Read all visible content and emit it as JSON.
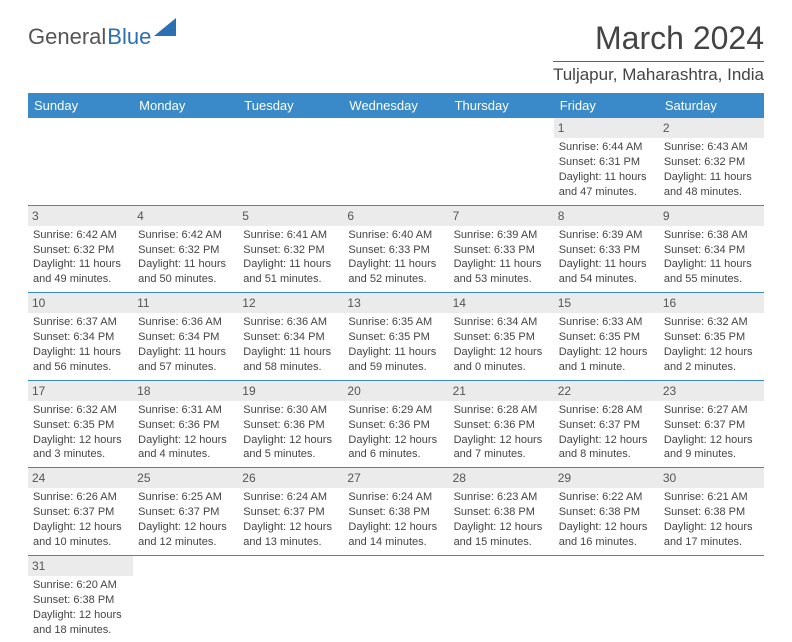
{
  "logo": {
    "part1": "General",
    "part2": "Blue"
  },
  "title": "March 2024",
  "location": "Tuljapur, Maharashtra, India",
  "weekdays": [
    "Sunday",
    "Monday",
    "Tuesday",
    "Wednesday",
    "Thursday",
    "Friday",
    "Saturday"
  ],
  "colors": {
    "headerBg": "#3a8ac9",
    "accent": "#2d6fb3",
    "dayBg": "#ebebeb"
  },
  "days": [
    {
      "n": "1",
      "sr": "Sunrise: 6:44 AM",
      "ss": "Sunset: 6:31 PM",
      "d1": "Daylight: 11 hours",
      "d2": "and 47 minutes."
    },
    {
      "n": "2",
      "sr": "Sunrise: 6:43 AM",
      "ss": "Sunset: 6:32 PM",
      "d1": "Daylight: 11 hours",
      "d2": "and 48 minutes."
    },
    {
      "n": "3",
      "sr": "Sunrise: 6:42 AM",
      "ss": "Sunset: 6:32 PM",
      "d1": "Daylight: 11 hours",
      "d2": "and 49 minutes."
    },
    {
      "n": "4",
      "sr": "Sunrise: 6:42 AM",
      "ss": "Sunset: 6:32 PM",
      "d1": "Daylight: 11 hours",
      "d2": "and 50 minutes."
    },
    {
      "n": "5",
      "sr": "Sunrise: 6:41 AM",
      "ss": "Sunset: 6:32 PM",
      "d1": "Daylight: 11 hours",
      "d2": "and 51 minutes."
    },
    {
      "n": "6",
      "sr": "Sunrise: 6:40 AM",
      "ss": "Sunset: 6:33 PM",
      "d1": "Daylight: 11 hours",
      "d2": "and 52 minutes."
    },
    {
      "n": "7",
      "sr": "Sunrise: 6:39 AM",
      "ss": "Sunset: 6:33 PM",
      "d1": "Daylight: 11 hours",
      "d2": "and 53 minutes."
    },
    {
      "n": "8",
      "sr": "Sunrise: 6:39 AM",
      "ss": "Sunset: 6:33 PM",
      "d1": "Daylight: 11 hours",
      "d2": "and 54 minutes."
    },
    {
      "n": "9",
      "sr": "Sunrise: 6:38 AM",
      "ss": "Sunset: 6:34 PM",
      "d1": "Daylight: 11 hours",
      "d2": "and 55 minutes."
    },
    {
      "n": "10",
      "sr": "Sunrise: 6:37 AM",
      "ss": "Sunset: 6:34 PM",
      "d1": "Daylight: 11 hours",
      "d2": "and 56 minutes."
    },
    {
      "n": "11",
      "sr": "Sunrise: 6:36 AM",
      "ss": "Sunset: 6:34 PM",
      "d1": "Daylight: 11 hours",
      "d2": "and 57 minutes."
    },
    {
      "n": "12",
      "sr": "Sunrise: 6:36 AM",
      "ss": "Sunset: 6:34 PM",
      "d1": "Daylight: 11 hours",
      "d2": "and 58 minutes."
    },
    {
      "n": "13",
      "sr": "Sunrise: 6:35 AM",
      "ss": "Sunset: 6:35 PM",
      "d1": "Daylight: 11 hours",
      "d2": "and 59 minutes."
    },
    {
      "n": "14",
      "sr": "Sunrise: 6:34 AM",
      "ss": "Sunset: 6:35 PM",
      "d1": "Daylight: 12 hours",
      "d2": "and 0 minutes."
    },
    {
      "n": "15",
      "sr": "Sunrise: 6:33 AM",
      "ss": "Sunset: 6:35 PM",
      "d1": "Daylight: 12 hours",
      "d2": "and 1 minute."
    },
    {
      "n": "16",
      "sr": "Sunrise: 6:32 AM",
      "ss": "Sunset: 6:35 PM",
      "d1": "Daylight: 12 hours",
      "d2": "and 2 minutes."
    },
    {
      "n": "17",
      "sr": "Sunrise: 6:32 AM",
      "ss": "Sunset: 6:35 PM",
      "d1": "Daylight: 12 hours",
      "d2": "and 3 minutes."
    },
    {
      "n": "18",
      "sr": "Sunrise: 6:31 AM",
      "ss": "Sunset: 6:36 PM",
      "d1": "Daylight: 12 hours",
      "d2": "and 4 minutes."
    },
    {
      "n": "19",
      "sr": "Sunrise: 6:30 AM",
      "ss": "Sunset: 6:36 PM",
      "d1": "Daylight: 12 hours",
      "d2": "and 5 minutes."
    },
    {
      "n": "20",
      "sr": "Sunrise: 6:29 AM",
      "ss": "Sunset: 6:36 PM",
      "d1": "Daylight: 12 hours",
      "d2": "and 6 minutes."
    },
    {
      "n": "21",
      "sr": "Sunrise: 6:28 AM",
      "ss": "Sunset: 6:36 PM",
      "d1": "Daylight: 12 hours",
      "d2": "and 7 minutes."
    },
    {
      "n": "22",
      "sr": "Sunrise: 6:28 AM",
      "ss": "Sunset: 6:37 PM",
      "d1": "Daylight: 12 hours",
      "d2": "and 8 minutes."
    },
    {
      "n": "23",
      "sr": "Sunrise: 6:27 AM",
      "ss": "Sunset: 6:37 PM",
      "d1": "Daylight: 12 hours",
      "d2": "and 9 minutes."
    },
    {
      "n": "24",
      "sr": "Sunrise: 6:26 AM",
      "ss": "Sunset: 6:37 PM",
      "d1": "Daylight: 12 hours",
      "d2": "and 10 minutes."
    },
    {
      "n": "25",
      "sr": "Sunrise: 6:25 AM",
      "ss": "Sunset: 6:37 PM",
      "d1": "Daylight: 12 hours",
      "d2": "and 12 minutes."
    },
    {
      "n": "26",
      "sr": "Sunrise: 6:24 AM",
      "ss": "Sunset: 6:37 PM",
      "d1": "Daylight: 12 hours",
      "d2": "and 13 minutes."
    },
    {
      "n": "27",
      "sr": "Sunrise: 6:24 AM",
      "ss": "Sunset: 6:38 PM",
      "d1": "Daylight: 12 hours",
      "d2": "and 14 minutes."
    },
    {
      "n": "28",
      "sr": "Sunrise: 6:23 AM",
      "ss": "Sunset: 6:38 PM",
      "d1": "Daylight: 12 hours",
      "d2": "and 15 minutes."
    },
    {
      "n": "29",
      "sr": "Sunrise: 6:22 AM",
      "ss": "Sunset: 6:38 PM",
      "d1": "Daylight: 12 hours",
      "d2": "and 16 minutes."
    },
    {
      "n": "30",
      "sr": "Sunrise: 6:21 AM",
      "ss": "Sunset: 6:38 PM",
      "d1": "Daylight: 12 hours",
      "d2": "and 17 minutes."
    },
    {
      "n": "31",
      "sr": "Sunrise: 6:20 AM",
      "ss": "Sunset: 6:38 PM",
      "d1": "Daylight: 12 hours",
      "d2": "and 18 minutes."
    }
  ],
  "startOffset": 5
}
